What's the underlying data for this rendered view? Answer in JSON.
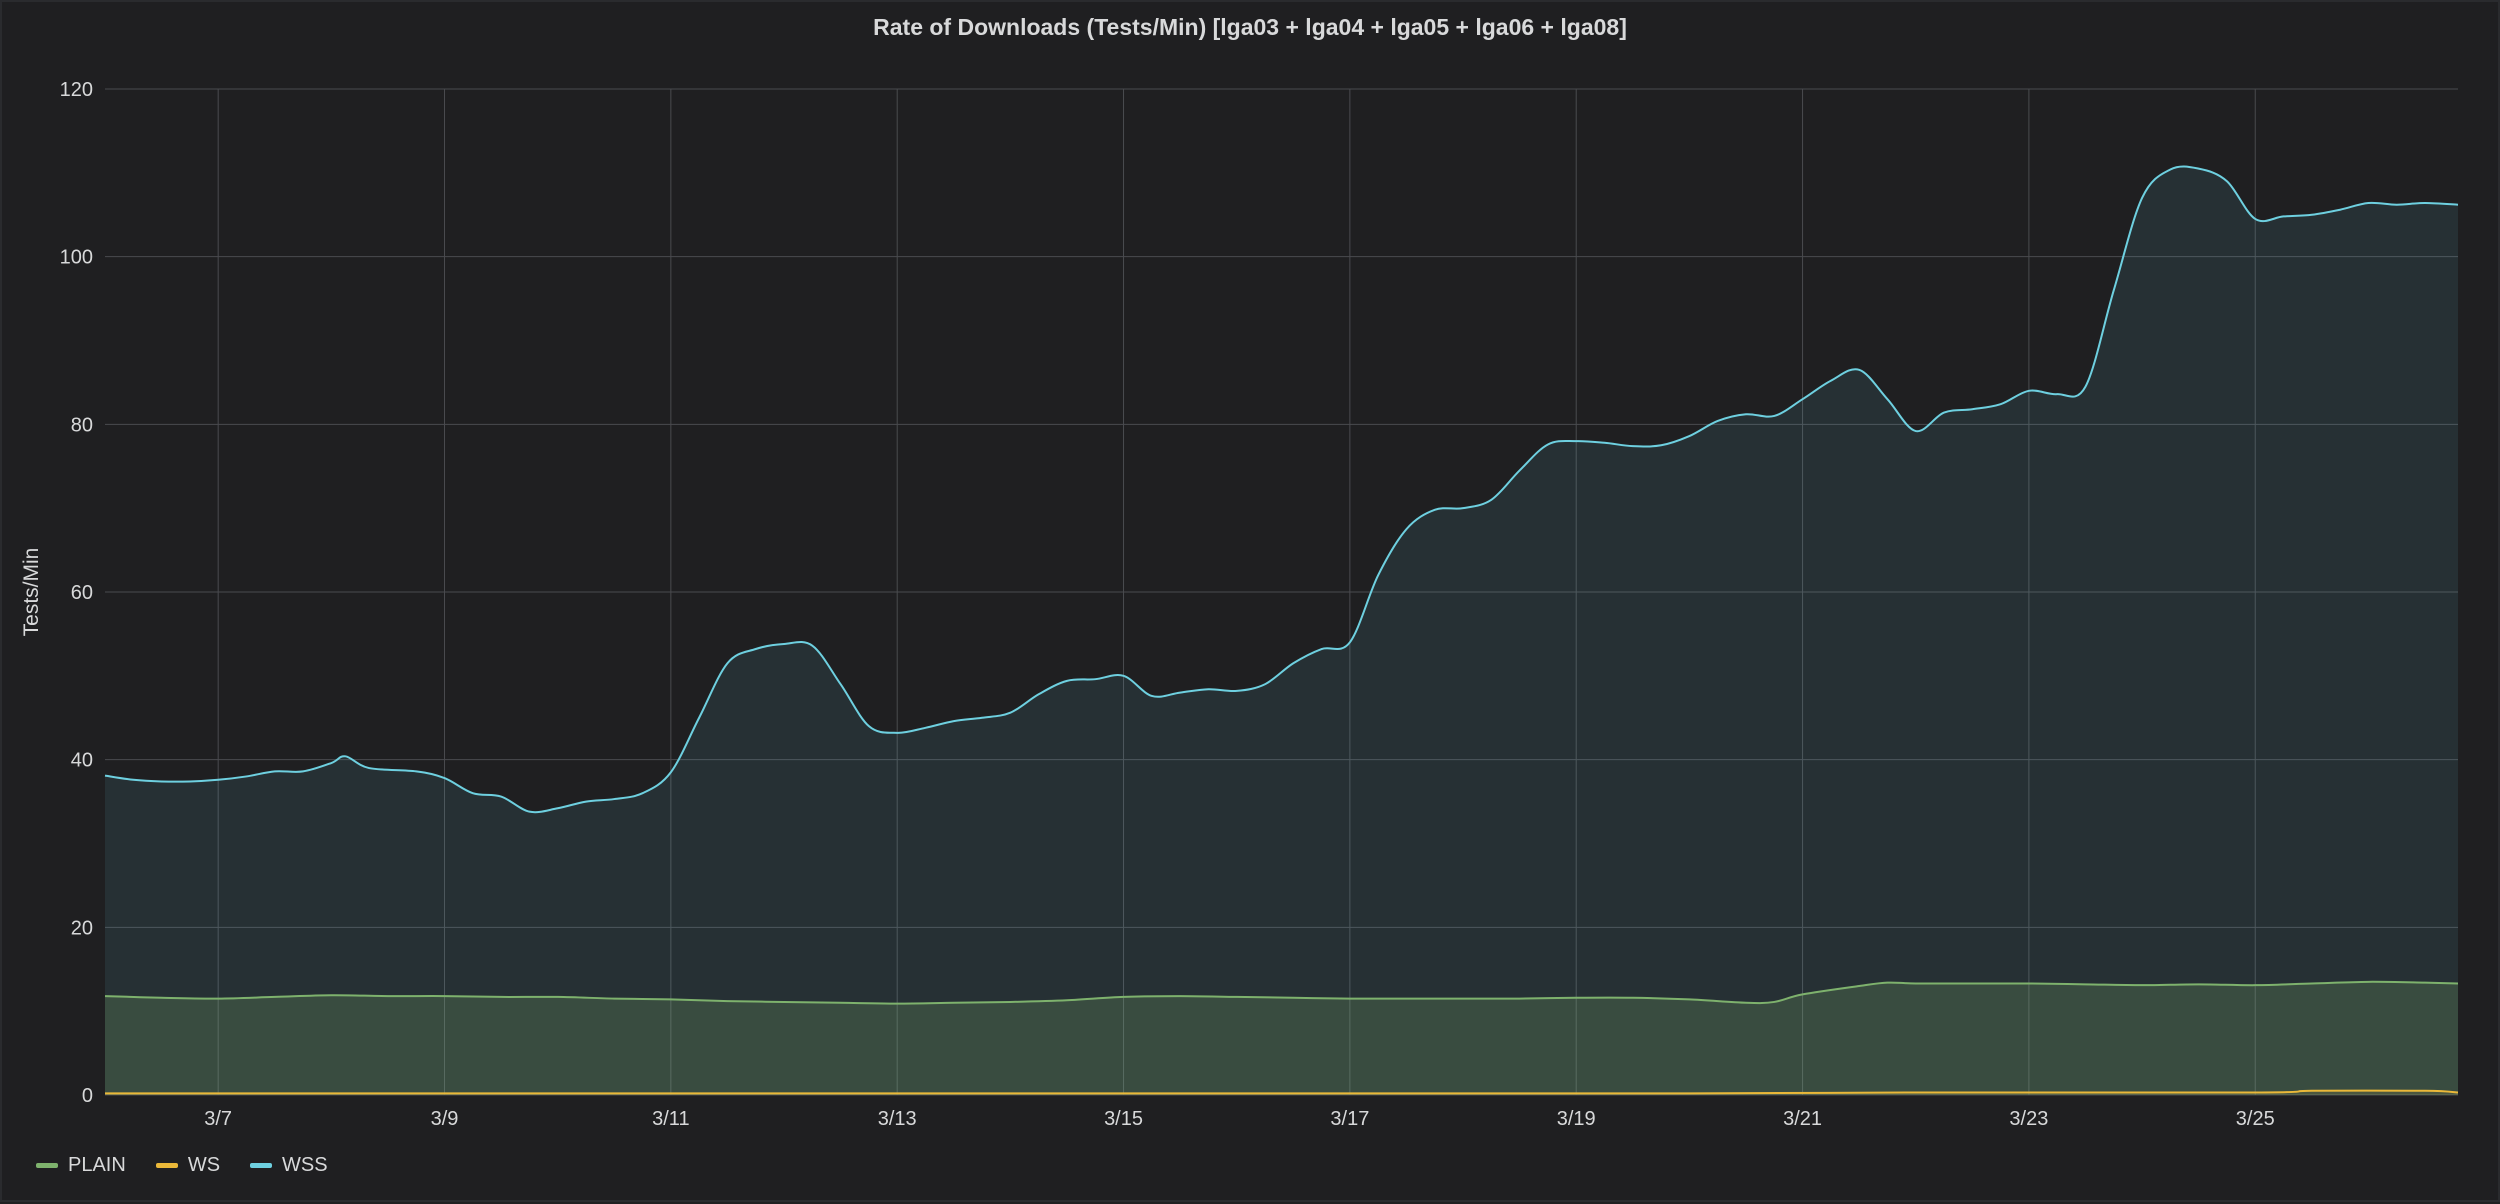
{
  "chart_data": {
    "type": "area",
    "title": "Rate of Downloads (Tests/Min) [lga03 + lga04 + lga05 + lga06 + lga08]",
    "xlabel": "",
    "ylabel": "Tests/Min",
    "ylim": [
      0,
      120
    ],
    "yticks": [
      0,
      20,
      40,
      60,
      80,
      100,
      120
    ],
    "xlim": [
      "2020-03-06T00:00",
      "2020-03-26T19:00"
    ],
    "xticks": [
      {
        "date": "2020-03-07",
        "label": "3/7"
      },
      {
        "date": "2020-03-09",
        "label": "3/9"
      },
      {
        "date": "2020-03-11",
        "label": "3/11"
      },
      {
        "date": "2020-03-13",
        "label": "3/13"
      },
      {
        "date": "2020-03-15",
        "label": "3/15"
      },
      {
        "date": "2020-03-17",
        "label": "3/17"
      },
      {
        "date": "2020-03-19",
        "label": "3/19"
      },
      {
        "date": "2020-03-21",
        "label": "3/21"
      },
      {
        "date": "2020-03-23",
        "label": "3/23"
      },
      {
        "date": "2020-03-25",
        "label": "3/25"
      }
    ],
    "grid": true,
    "legend": "bottom-left",
    "series": [
      {
        "name": "PLAIN",
        "color": "#7eb26d",
        "points": [
          [
            "2020-03-06T00:00",
            11.8
          ],
          [
            "2020-03-06T12:00",
            11.6
          ],
          [
            "2020-03-07T00:00",
            11.5
          ],
          [
            "2020-03-07T12:00",
            11.7
          ],
          [
            "2020-03-08T00:00",
            11.9
          ],
          [
            "2020-03-08T12:00",
            11.8
          ],
          [
            "2020-03-09T00:00",
            11.8
          ],
          [
            "2020-03-09T12:00",
            11.7
          ],
          [
            "2020-03-10T00:00",
            11.7
          ],
          [
            "2020-03-10T12:00",
            11.5
          ],
          [
            "2020-03-11T00:00",
            11.4
          ],
          [
            "2020-03-11T12:00",
            11.2
          ],
          [
            "2020-03-12T00:00",
            11.1
          ],
          [
            "2020-03-12T12:00",
            11.0
          ],
          [
            "2020-03-13T00:00",
            10.9
          ],
          [
            "2020-03-13T12:00",
            11.0
          ],
          [
            "2020-03-14T00:00",
            11.1
          ],
          [
            "2020-03-14T12:00",
            11.3
          ],
          [
            "2020-03-15T00:00",
            11.7
          ],
          [
            "2020-03-15T12:00",
            11.8
          ],
          [
            "2020-03-16T00:00",
            11.7
          ],
          [
            "2020-03-16T12:00",
            11.6
          ],
          [
            "2020-03-17T00:00",
            11.5
          ],
          [
            "2020-03-17T12:00",
            11.5
          ],
          [
            "2020-03-18T00:00",
            11.5
          ],
          [
            "2020-03-18T12:00",
            11.5
          ],
          [
            "2020-03-19T00:00",
            11.6
          ],
          [
            "2020-03-19T12:00",
            11.6
          ],
          [
            "2020-03-20T00:00",
            11.4
          ],
          [
            "2020-03-20T12:00",
            11.0
          ],
          [
            "2020-03-20T18:00",
            11.1
          ],
          [
            "2020-03-21T00:00",
            12.0
          ],
          [
            "2020-03-21T12:00",
            13.0
          ],
          [
            "2020-03-21T18:00",
            13.4
          ],
          [
            "2020-03-22T00:00",
            13.3
          ],
          [
            "2020-03-22T12:00",
            13.3
          ],
          [
            "2020-03-23T00:00",
            13.3
          ],
          [
            "2020-03-23T12:00",
            13.2
          ],
          [
            "2020-03-24T00:00",
            13.1
          ],
          [
            "2020-03-24T12:00",
            13.2
          ],
          [
            "2020-03-25T00:00",
            13.1
          ],
          [
            "2020-03-25T12:00",
            13.3
          ],
          [
            "2020-03-26T00:00",
            13.5
          ],
          [
            "2020-03-26T12:00",
            13.4
          ],
          [
            "2020-03-26T19:00",
            13.3
          ]
        ]
      },
      {
        "name": "WS",
        "color": "#eab839",
        "points": [
          [
            "2020-03-06T00:00",
            0.2
          ],
          [
            "2020-03-10T00:00",
            0.2
          ],
          [
            "2020-03-15T00:00",
            0.2
          ],
          [
            "2020-03-20T00:00",
            0.2
          ],
          [
            "2020-03-22T00:00",
            0.3
          ],
          [
            "2020-03-25T00:00",
            0.3
          ],
          [
            "2020-03-25T12:00",
            0.5
          ],
          [
            "2020-03-26T12:00",
            0.5
          ],
          [
            "2020-03-26T19:00",
            0.3
          ]
        ]
      },
      {
        "name": "WSS",
        "color": "#6ed0e0",
        "points": [
          [
            "2020-03-06T00:00",
            38.1
          ],
          [
            "2020-03-06T06:00",
            37.6
          ],
          [
            "2020-03-06T12:00",
            37.4
          ],
          [
            "2020-03-06T18:00",
            37.4
          ],
          [
            "2020-03-07T00:00",
            37.6
          ],
          [
            "2020-03-07T06:00",
            38.0
          ],
          [
            "2020-03-07T12:00",
            38.6
          ],
          [
            "2020-03-07T18:00",
            38.6
          ],
          [
            "2020-03-08T00:00",
            39.6
          ],
          [
            "2020-03-08T03:00",
            40.4
          ],
          [
            "2020-03-08T08:00",
            39.0
          ],
          [
            "2020-03-08T18:00",
            38.6
          ],
          [
            "2020-03-09T00:00",
            37.8
          ],
          [
            "2020-03-09T06:00",
            36.0
          ],
          [
            "2020-03-09T12:00",
            35.6
          ],
          [
            "2020-03-09T18:00",
            33.8
          ],
          [
            "2020-03-10T00:00",
            34.2
          ],
          [
            "2020-03-10T06:00",
            35.0
          ],
          [
            "2020-03-10T12:00",
            35.3
          ],
          [
            "2020-03-10T18:00",
            36.0
          ],
          [
            "2020-03-11T00:00",
            38.5
          ],
          [
            "2020-03-11T06:00",
            45.0
          ],
          [
            "2020-03-11T12:00",
            51.5
          ],
          [
            "2020-03-11T18:00",
            53.2
          ],
          [
            "2020-03-12T00:00",
            53.8
          ],
          [
            "2020-03-12T06:00",
            53.6
          ],
          [
            "2020-03-12T12:00",
            49.0
          ],
          [
            "2020-03-12T18:00",
            44.0
          ],
          [
            "2020-03-13T00:00",
            43.2
          ],
          [
            "2020-03-13T06:00",
            43.8
          ],
          [
            "2020-03-13T12:00",
            44.6
          ],
          [
            "2020-03-13T18:00",
            45.0
          ],
          [
            "2020-03-14T00:00",
            45.6
          ],
          [
            "2020-03-14T06:00",
            47.8
          ],
          [
            "2020-03-14T12:00",
            49.4
          ],
          [
            "2020-03-14T18:00",
            49.6
          ],
          [
            "2020-03-15T00:00",
            50.0
          ],
          [
            "2020-03-15T06:00",
            47.6
          ],
          [
            "2020-03-15T12:00",
            48.0
          ],
          [
            "2020-03-15T18:00",
            48.4
          ],
          [
            "2020-03-16T00:00",
            48.2
          ],
          [
            "2020-03-16T06:00",
            49.0
          ],
          [
            "2020-03-16T12:00",
            51.5
          ],
          [
            "2020-03-16T18:00",
            53.2
          ],
          [
            "2020-03-17T00:00",
            54.0
          ],
          [
            "2020-03-17T06:00",
            62.0
          ],
          [
            "2020-03-17T12:00",
            67.5
          ],
          [
            "2020-03-17T18:00",
            69.8
          ],
          [
            "2020-03-18T00:00",
            70.0
          ],
          [
            "2020-03-18T06:00",
            71.0
          ],
          [
            "2020-03-18T12:00",
            74.5
          ],
          [
            "2020-03-18T18:00",
            77.6
          ],
          [
            "2020-03-19T00:00",
            78.0
          ],
          [
            "2020-03-19T06:00",
            77.8
          ],
          [
            "2020-03-19T12:00",
            77.4
          ],
          [
            "2020-03-19T18:00",
            77.5
          ],
          [
            "2020-03-20T00:00",
            78.6
          ],
          [
            "2020-03-20T06:00",
            80.4
          ],
          [
            "2020-03-20T12:00",
            81.2
          ],
          [
            "2020-03-20T18:00",
            81.0
          ],
          [
            "2020-03-21T00:00",
            83.0
          ],
          [
            "2020-03-21T06:00",
            85.2
          ],
          [
            "2020-03-21T12:00",
            86.5
          ],
          [
            "2020-03-21T18:00",
            83.0
          ],
          [
            "2020-03-22T00:00",
            79.2
          ],
          [
            "2020-03-22T06:00",
            81.4
          ],
          [
            "2020-03-22T12:00",
            81.8
          ],
          [
            "2020-03-22T18:00",
            82.4
          ],
          [
            "2020-03-23T00:00",
            84.0
          ],
          [
            "2020-03-23T06:00",
            83.6
          ],
          [
            "2020-03-23T12:00",
            84.5
          ],
          [
            "2020-03-23T18:00",
            96.0
          ],
          [
            "2020-03-24T00:00",
            107.0
          ],
          [
            "2020-03-24T06:00",
            110.4
          ],
          [
            "2020-03-24T12:00",
            110.5
          ],
          [
            "2020-03-24T18:00",
            109.0
          ],
          [
            "2020-03-25T00:00",
            104.5
          ],
          [
            "2020-03-25T06:00",
            104.8
          ],
          [
            "2020-03-25T12:00",
            105.0
          ],
          [
            "2020-03-25T18:00",
            105.6
          ],
          [
            "2020-03-26T00:00",
            106.4
          ],
          [
            "2020-03-26T06:00",
            106.2
          ],
          [
            "2020-03-26T12:00",
            106.4
          ],
          [
            "2020-03-26T19:00",
            106.2
          ]
        ]
      }
    ]
  }
}
